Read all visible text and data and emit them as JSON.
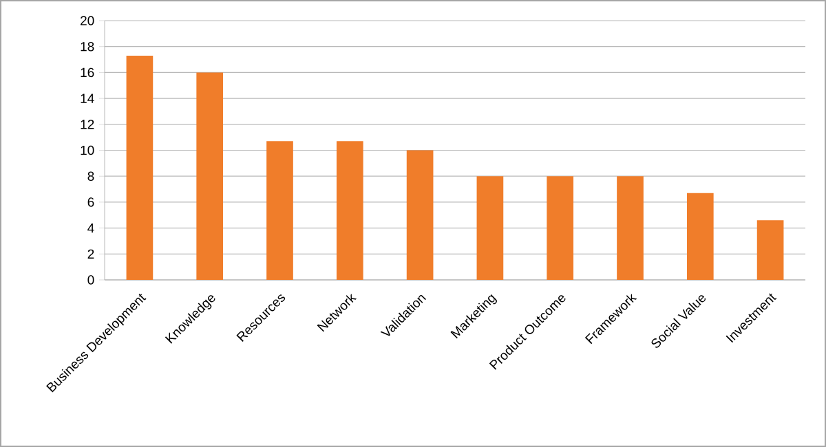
{
  "chart_data": {
    "type": "bar",
    "categories": [
      "Business Development",
      "Knowledge",
      "Resources",
      "Network",
      "Validation",
      "Marketing",
      "Product Outcome",
      "Framework",
      "Social Value",
      "Investment"
    ],
    "values": [
      17.3,
      16.0,
      10.7,
      10.7,
      10.0,
      8.0,
      8.0,
      8.0,
      6.7,
      4.6
    ],
    "color": "#f07d2a",
    "ylim": [
      0,
      20
    ],
    "yticks": [
      0,
      2,
      4,
      6,
      8,
      10,
      12,
      14,
      16,
      18,
      20
    ],
    "grid": "y"
  }
}
